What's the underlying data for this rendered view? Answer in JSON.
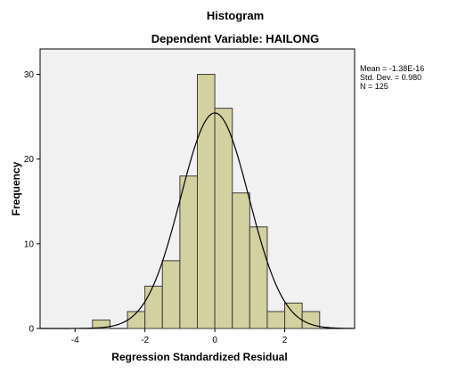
{
  "chart_data": {
    "type": "bar",
    "title": "Histogram",
    "subtitle": "Dependent Variable: HAILONG",
    "xlabel": "Regression Standardized Residual",
    "ylabel": "Frequency",
    "xlim": [
      -5,
      4
    ],
    "ylim": [
      0,
      33
    ],
    "x_ticks": [
      -4,
      -2,
      0,
      2
    ],
    "y_ticks": [
      0,
      10,
      20,
      30
    ],
    "bin_width": 0.5,
    "bins": [
      {
        "x0": -3.5,
        "x1": -3.0,
        "count": 1
      },
      {
        "x0": -3.0,
        "x1": -2.5,
        "count": 0
      },
      {
        "x0": -2.5,
        "x1": -2.0,
        "count": 2
      },
      {
        "x0": -2.0,
        "x1": -1.5,
        "count": 5
      },
      {
        "x0": -1.5,
        "x1": -1.0,
        "count": 8
      },
      {
        "x0": -1.0,
        "x1": -0.5,
        "count": 18
      },
      {
        "x0": -0.5,
        "x1": 0.0,
        "count": 30
      },
      {
        "x0": 0.0,
        "x1": 0.5,
        "count": 26
      },
      {
        "x0": 0.5,
        "x1": 1.0,
        "count": 16
      },
      {
        "x0": 1.0,
        "x1": 1.5,
        "count": 12
      },
      {
        "x0": 1.5,
        "x1": 2.0,
        "count": 2
      },
      {
        "x0": 2.0,
        "x1": 2.5,
        "count": 3
      },
      {
        "x0": 2.5,
        "x1": 3.0,
        "count": 2
      }
    ],
    "normal_curve": {
      "mean": 0,
      "std_dev": 0.98,
      "n": 125
    },
    "stats": {
      "mean": "Mean = -1.38E-16",
      "std_dev": "Std. Dev. = 0.980",
      "n": "N = 125"
    },
    "colors": {
      "bar_fill": "#d3d1a0",
      "bar_stroke": "#3c3c3c",
      "plot_bg": "#f1f1f1",
      "curve": "#000000"
    }
  }
}
